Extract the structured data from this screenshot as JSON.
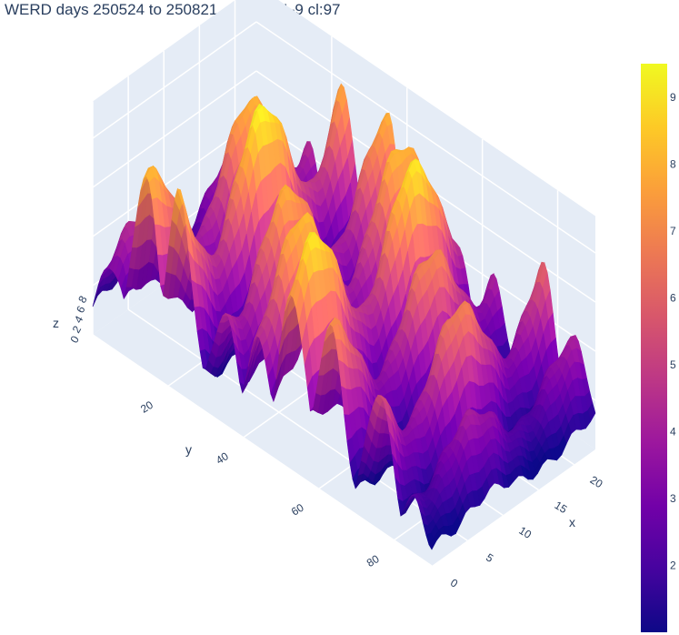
{
  "title": "WERD days 250524 to 250821   sm:3 a:1-9 cl:97",
  "chart_data": {
    "type": "surface",
    "title": "WERD days 250524 to 250821   sm:3 a:1-9 cl:97",
    "xlabel": "x",
    "ylabel": "y",
    "zlabel": "z",
    "x_ticks": [
      "0",
      "5",
      "10",
      "15",
      "20"
    ],
    "y_ticks": [
      "20",
      "40",
      "60",
      "80"
    ],
    "z_ticks": [
      "0",
      "2",
      "4",
      "6",
      "8"
    ],
    "x_range": [
      0,
      23
    ],
    "y_range": [
      0,
      90
    ],
    "z_range": [
      0,
      9.5
    ],
    "colorscale": "plasma",
    "colorbar_ticks": [
      "2",
      "3",
      "4",
      "5",
      "6",
      "7",
      "8",
      "9"
    ],
    "colorbar_range": [
      1,
      9.5
    ],
    "colors": {
      "pane": "#e5ecf6",
      "grid": "#ffffff",
      "text": "#2a3f5f"
    },
    "ridges": [
      {
        "y_center": 5,
        "height": 4.5
      },
      {
        "y_center": 14,
        "height": 8.0
      },
      {
        "y_center": 23,
        "height": 9.3
      },
      {
        "y_center": 35,
        "height": 7.8
      },
      {
        "y_center": 44,
        "height": 8.2
      },
      {
        "y_center": 53,
        "height": 9.0
      },
      {
        "y_center": 63,
        "height": 7.0
      },
      {
        "y_center": 76,
        "height": 6.8
      },
      {
        "y_center": 85,
        "height": 4.0
      }
    ]
  }
}
